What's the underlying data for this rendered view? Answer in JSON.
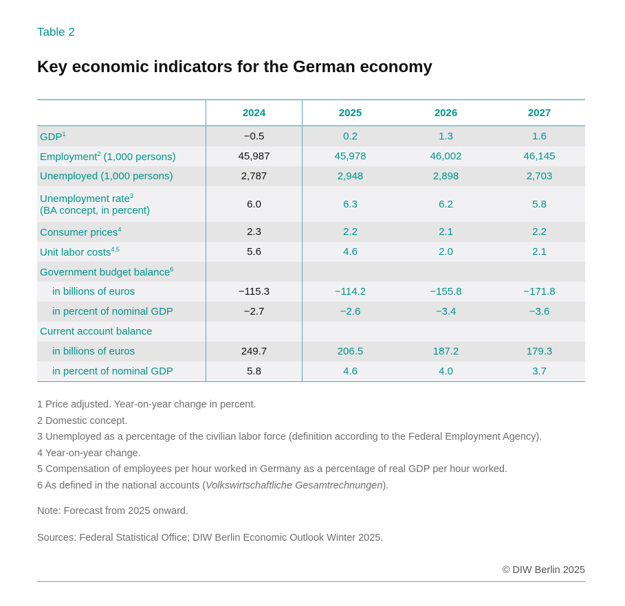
{
  "label": "Table 2",
  "title": "Key economic indicators for the German economy",
  "table": {
    "headers": [
      "",
      "2024",
      "2025",
      "2026",
      "2027"
    ],
    "rows": [
      {
        "label": "GDP",
        "sup": "1",
        "values": [
          "−0.5",
          "0.2",
          "1.3",
          "1.6"
        ]
      },
      {
        "label": "Employment",
        "sup": "2",
        "suffix": " (1,000 persons)",
        "values": [
          "45,987",
          "45,978",
          "46,002",
          "46,145"
        ]
      },
      {
        "label": "Unemployed (1,000 persons)",
        "values": [
          "2,787",
          "2,948",
          "2,898",
          "2,703"
        ]
      },
      {
        "label": "Unemployment rate",
        "sup": "3",
        "line2": "(BA concept, in percent)",
        "values": [
          "6.0",
          "6.3",
          "6.2",
          "5.8"
        ]
      },
      {
        "label": "Consumer prices",
        "sup": "4",
        "values": [
          "2.3",
          "2.2",
          "2.1",
          "2.2"
        ]
      },
      {
        "label": "Unit labor costs",
        "sup": "4,5",
        "values": [
          "5.6",
          "4.6",
          "2.0",
          "2.1"
        ]
      },
      {
        "label": "Government budget balance",
        "sup": "6",
        "values": [
          "",
          "",
          "",
          ""
        ]
      },
      {
        "label": "in billions of euros",
        "values": [
          "−115.3",
          "−114.2",
          "−155.8",
          "−171.8"
        ]
      },
      {
        "label": "in percent of nominal GDP",
        "values": [
          "−2.7",
          "−2.6",
          "−3.4",
          "−3.6"
        ]
      },
      {
        "label": "Current account balance",
        "values": [
          "",
          "",
          "",
          ""
        ]
      },
      {
        "label": "in billions of euros",
        "values": [
          "249.7",
          "206.5",
          "187.2",
          "179.3"
        ]
      },
      {
        "label": "in percent of nominal GDP",
        "values": [
          "5.8",
          "4.6",
          "4.0",
          "3.7"
        ]
      }
    ]
  },
  "footnotes": [
    "1  Price adjusted. Year-on-year change in percent.",
    "2  Domestic concept.",
    "3  Unemployed as a percentage of the civilian labor force (definition according to the Federal Employment Agency).",
    "4  Year-on-year change.",
    "5  Compensation of employees per hour worked in Germany as a percentage of real GDP per hour worked.",
    "6  As defined in the national accounts ("
  ],
  "footnote6_italic": "Volkswirtschaftliche Gesamtrechnungen",
  "footnote6_end": ").",
  "note": "Note: Forecast from 2025 onward.",
  "sources": "Sources: Federal Statistical Office; DIW Berlin Economic Outlook Winter 2025.",
  "copyright": "© DIW Berlin 2025",
  "colors": {
    "accent": "#00958a",
    "row_dark": "#e5e5e6",
    "row_light": "#f1f1f3"
  }
}
